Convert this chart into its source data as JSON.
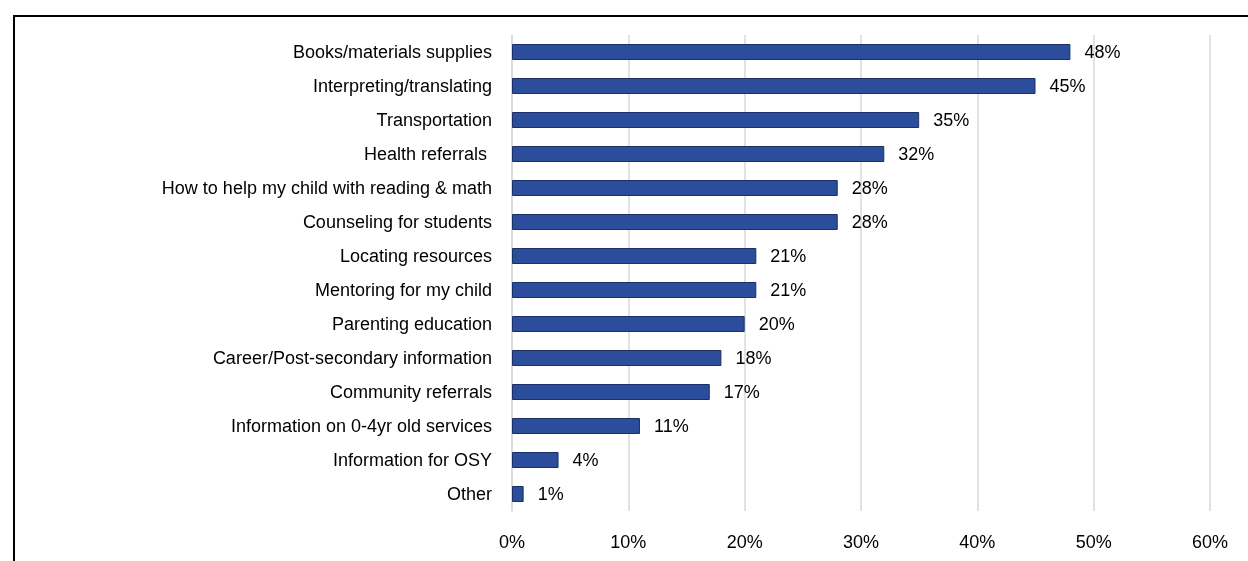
{
  "chart_data": {
    "type": "bar",
    "orientation": "horizontal",
    "categories": [
      "Books/materials supplies",
      "Interpreting/translating",
      "Transportation",
      "Health referrals ",
      "How to help my child with reading & math",
      "Counseling for students",
      "Locating resources",
      "Mentoring for my child",
      "Parenting education",
      "Career/Post-secondary information",
      "Community referrals",
      "Information on 0-4yr old services",
      "Information for OSY",
      "Other"
    ],
    "values": [
      48,
      45,
      35,
      32,
      28,
      28,
      21,
      21,
      20,
      18,
      17,
      11,
      4,
      1
    ],
    "value_labels": [
      "48%",
      "45%",
      "35%",
      "32%",
      "28%",
      "28%",
      "21%",
      "21%",
      "20%",
      "18%",
      "17%",
      "11%",
      "4%",
      "1%"
    ],
    "color": "#2c4d9c",
    "xlim": [
      0,
      60
    ],
    "xticks": [
      {
        "value": 0,
        "label": "0%"
      },
      {
        "value": 10,
        "label": "10%"
      },
      {
        "value": 20,
        "label": "20%"
      },
      {
        "value": 30,
        "label": "30%"
      },
      {
        "value": 40,
        "label": "40%"
      },
      {
        "value": 50,
        "label": "50%"
      },
      {
        "value": 60,
        "label": "60%"
      }
    ],
    "grid": "x"
  }
}
